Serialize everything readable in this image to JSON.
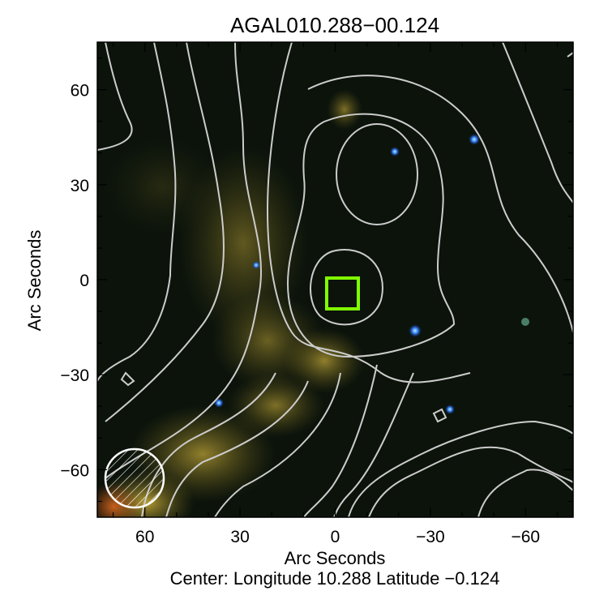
{
  "chart_data": {
    "type": "heatmap",
    "title": "AGAL010.288−00.124",
    "xlabel": "Arc Seconds",
    "ylabel": "Arc Seconds",
    "caption": "Center:  Longitude 10.288 Latitude −0.124",
    "xlim": [
      75,
      -75
    ],
    "ylim": [
      -75,
      75
    ],
    "xticks": [
      60,
      30,
      0,
      -30,
      -60
    ],
    "yticks": [
      60,
      30,
      0,
      -30,
      -60
    ],
    "xtick_labels": [
      "60",
      "30",
      "0",
      "−30",
      "−60"
    ],
    "ytick_labels": [
      "60",
      "30",
      "0",
      "−30",
      "−60"
    ],
    "grid": false,
    "colors": {
      "background": "#0a120a",
      "emission": "#c8b030",
      "contours": "#cccccc",
      "marker": "#80ff00",
      "beam": "#ffffff",
      "stars": "#3a8cff"
    }
  }
}
